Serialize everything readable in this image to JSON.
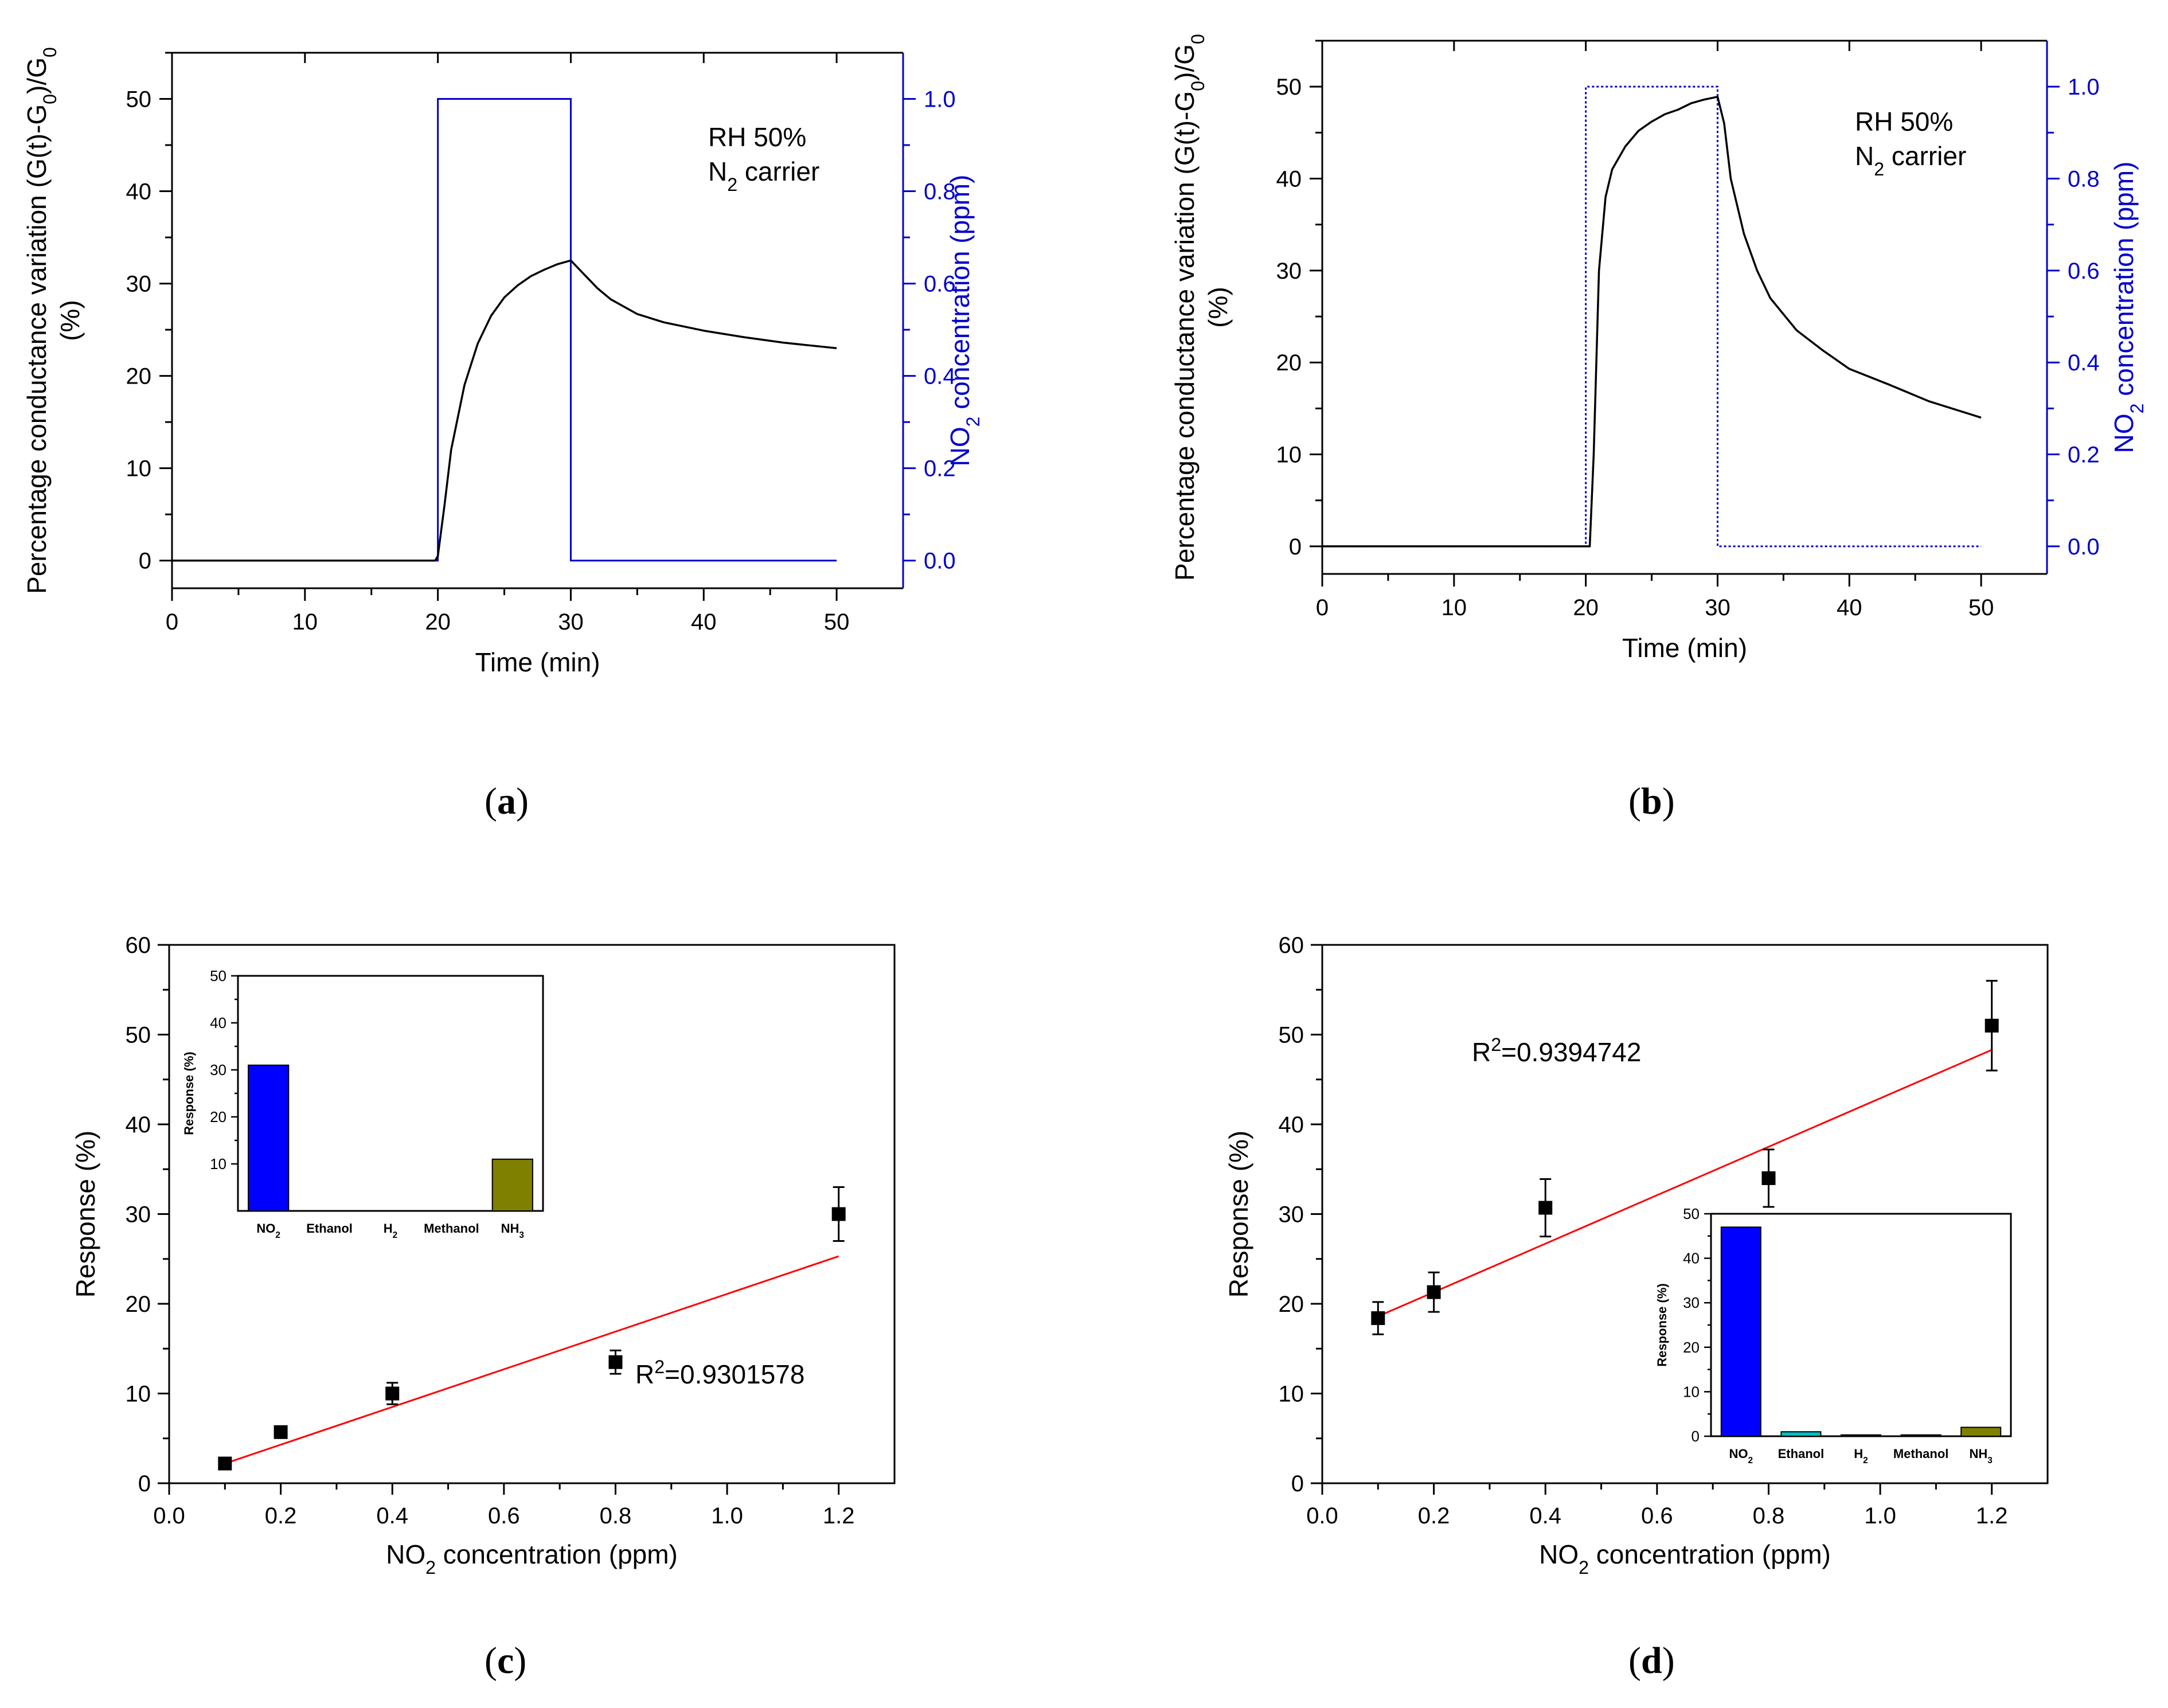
{
  "panels": [
    {
      "id": "a",
      "label": "a"
    },
    {
      "id": "b",
      "label": "b"
    },
    {
      "id": "c",
      "label": "c"
    },
    {
      "id": "d",
      "label": "d"
    }
  ],
  "chart_data": [
    {
      "panel": "a",
      "type": "line",
      "xlabel": "Time (min)",
      "ylabel_left": "Percentage conductance variation (G(t)-G0)/G0 (%)",
      "ylabel_right": "NO2 concentration (ppm)",
      "xlim": [
        0,
        55
      ],
      "ylim_left": [
        -3,
        55
      ],
      "ylim_right": [
        -0.06,
        1.1
      ],
      "x_ticks": [
        0,
        10,
        20,
        30,
        40,
        50
      ],
      "y_ticks_left": [
        0,
        10,
        20,
        30,
        40,
        50
      ],
      "y_ticks_right": [
        0.0,
        0.2,
        0.4,
        0.6,
        0.8,
        1.0
      ],
      "annotation": [
        "RH 50%",
        "N2 carrier"
      ],
      "colors": {
        "response": "#000000",
        "concentration": "#0000cc"
      },
      "series": [
        {
          "axis": "left",
          "x": [
            0,
            19.8,
            20,
            20.5,
            21,
            22,
            23,
            24,
            25,
            26,
            27,
            28,
            29,
            30,
            31,
            32,
            33,
            35,
            37,
            40,
            43,
            46,
            50
          ],
          "values": [
            0,
            0,
            0.5,
            6,
            12,
            19,
            23.5,
            26.5,
            28.5,
            29.8,
            30.8,
            31.5,
            32.1,
            32.5,
            31,
            29.5,
            28.3,
            26.7,
            25.8,
            24.9,
            24.2,
            23.6,
            23.0
          ]
        },
        {
          "axis": "right",
          "x": [
            0,
            20,
            20,
            30,
            30,
            50
          ],
          "values": [
            0,
            0,
            1,
            1,
            0,
            0
          ]
        }
      ]
    },
    {
      "panel": "b",
      "type": "line",
      "xlabel": "Time (min)",
      "ylabel_left": "Percentage conductance variation (G(t)-G0)/G0 (%)",
      "ylabel_right": "NO2 concentration (ppm)",
      "xlim": [
        0,
        55
      ],
      "ylim_left": [
        -3,
        55
      ],
      "ylim_right": [
        -0.06,
        1.1
      ],
      "x_ticks": [
        0,
        10,
        20,
        30,
        40,
        50
      ],
      "y_ticks_left": [
        0,
        10,
        20,
        30,
        40,
        50
      ],
      "y_ticks_right": [
        0.0,
        0.2,
        0.4,
        0.6,
        0.8,
        1.0
      ],
      "annotation": [
        "RH 50%",
        "N2 carrier"
      ],
      "colors": {
        "response": "#000000",
        "concentration": "#0000cc"
      },
      "series": [
        {
          "axis": "left",
          "x": [
            0,
            20.3,
            20.6,
            21,
            21.5,
            22,
            23,
            24,
            25,
            26,
            27,
            28,
            29,
            30,
            30.5,
            31,
            32,
            33,
            34,
            36,
            38,
            40,
            43,
            46,
            50
          ],
          "values": [
            0,
            0,
            10,
            30,
            38,
            41,
            43.5,
            45.2,
            46.2,
            47,
            47.5,
            48.2,
            48.6,
            48.9,
            46,
            40,
            34,
            30,
            27,
            23.5,
            21.3,
            19.3,
            17.6,
            15.8,
            14.0
          ]
        },
        {
          "axis": "right",
          "x": [
            0,
            20,
            20,
            30,
            30,
            50
          ],
          "values": [
            0,
            0,
            1,
            1,
            0,
            0
          ]
        }
      ]
    },
    {
      "panel": "c",
      "type": "scatter",
      "xlabel": "NO2 concentration (ppm)",
      "ylabel": "Response (%)",
      "xlim": [
        0.0,
        1.3
      ],
      "ylim": [
        0,
        60
      ],
      "x_ticks": [
        0.0,
        0.2,
        0.4,
        0.6,
        0.8,
        1.0,
        1.2
      ],
      "y_ticks": [
        0,
        10,
        20,
        30,
        40,
        50,
        60
      ],
      "x": [
        0.1,
        0.2,
        0.4,
        0.8,
        1.2
      ],
      "values": [
        2.2,
        5.7,
        10.0,
        13.5,
        30.0
      ],
      "errors": [
        0.5,
        0.6,
        1.2,
        1.3,
        3.0
      ],
      "fit": {
        "x": [
          0.1,
          1.2
        ],
        "y": [
          2.2,
          25.3
        ],
        "color": "#ff0000"
      },
      "r2_label": "=0.9301578",
      "inset": {
        "type": "bar",
        "ylabel": "Response (%)",
        "categories": [
          "NO2",
          "Ethanol",
          "H2",
          "Methanol",
          "NH3"
        ],
        "values": [
          31,
          0,
          0,
          0,
          11
        ],
        "colors": [
          "#0000ff",
          "#00c0c0",
          "#000000",
          "#000000",
          "#808000"
        ],
        "ylim": [
          0,
          50
        ],
        "y_ticks": [
          10,
          20,
          30,
          40,
          50
        ]
      }
    },
    {
      "panel": "d",
      "type": "scatter",
      "xlabel": "NO2 concentration (ppm)",
      "ylabel": "Response (%)",
      "xlim": [
        0.0,
        1.3
      ],
      "ylim": [
        0,
        60
      ],
      "x_ticks": [
        0.0,
        0.2,
        0.4,
        0.6,
        0.8,
        1.0,
        1.2
      ],
      "y_ticks": [
        0,
        10,
        20,
        30,
        40,
        50,
        60
      ],
      "x": [
        0.1,
        0.2,
        0.4,
        0.8,
        1.2
      ],
      "values": [
        18.4,
        21.3,
        30.7,
        34.0,
        51.0
      ],
      "errors": [
        1.8,
        2.2,
        3.2,
        3.2,
        5.0
      ],
      "fit": {
        "x": [
          0.1,
          1.2
        ],
        "y": [
          18.6,
          48.3
        ],
        "color": "#ff0000"
      },
      "r2_label": "=0.9394742",
      "inset": {
        "type": "bar",
        "ylabel": "Response (%)",
        "categories": [
          "NO2",
          "Ethanol",
          "H2",
          "Methanol",
          "NH3"
        ],
        "values": [
          47,
          1.0,
          0.3,
          0.3,
          2.0
        ],
        "colors": [
          "#0000ff",
          "#00c0c0",
          "#000000",
          "#000000",
          "#808000"
        ],
        "ylim": [
          0,
          50
        ],
        "y_ticks": [
          0,
          10,
          20,
          30,
          40,
          50
        ]
      }
    }
  ]
}
